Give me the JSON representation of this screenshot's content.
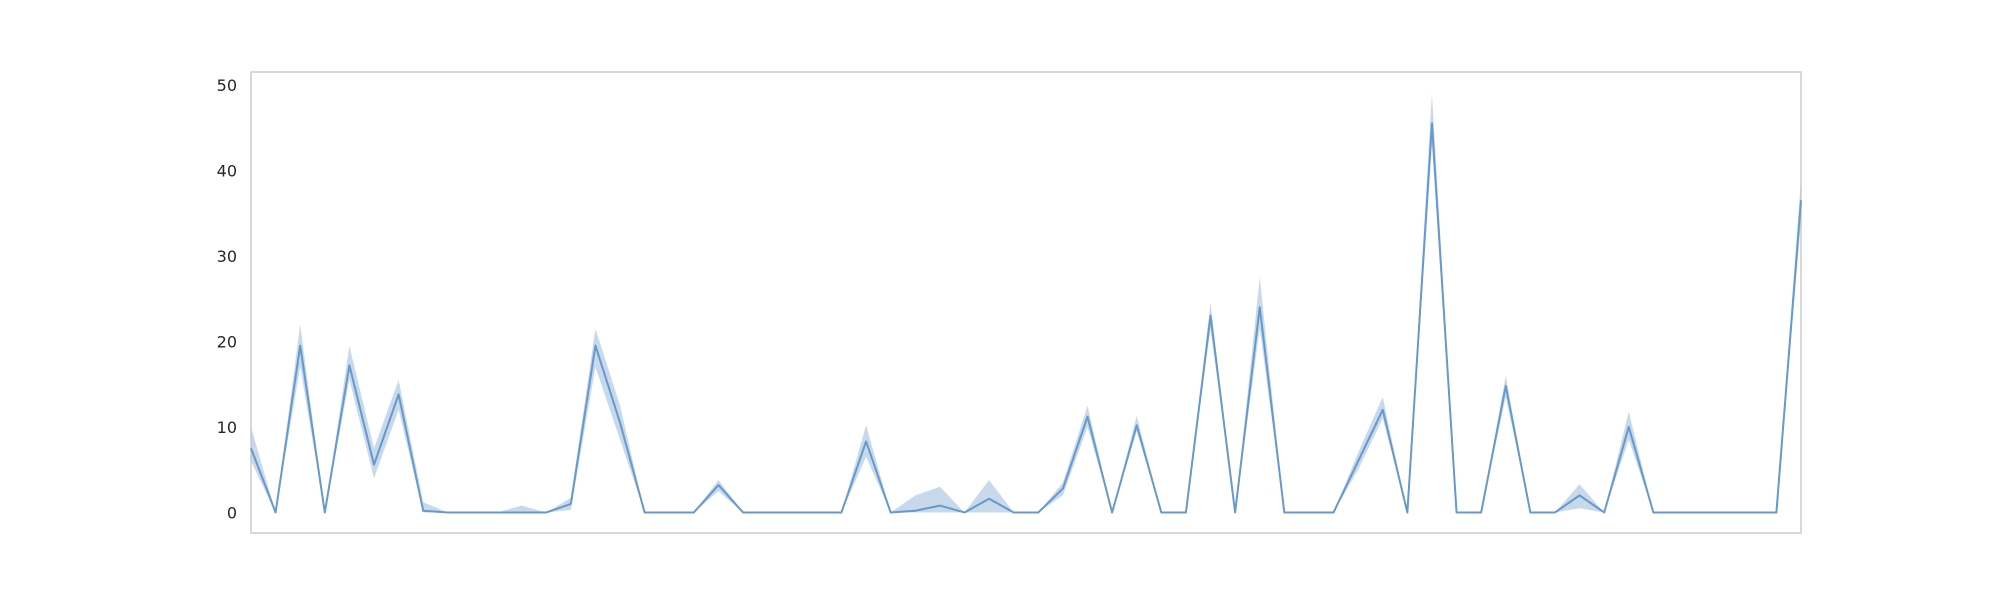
{
  "chart_data": {
    "type": "line",
    "title": "",
    "xlabel": "",
    "ylabel": "",
    "ylim": [
      -2.4,
      51.5
    ],
    "xlim": [
      0,
      63
    ],
    "grid": false,
    "y_ticks": [
      "0",
      "10",
      "20",
      "30",
      "40",
      "50"
    ],
    "colors": {
      "line": "#6699cc",
      "band": "#a9c5e0",
      "frame": "#cccccc"
    },
    "series": [
      {
        "values": [
          7.5,
          0,
          19.5,
          0,
          17.2,
          5.6,
          13.8,
          0.2,
          0,
          0,
          0,
          0,
          0,
          1,
          19.5,
          10.5,
          0,
          0,
          0,
          3.2,
          0,
          0,
          0,
          0,
          0,
          8.3,
          0,
          0.2,
          0.8,
          0,
          1.6,
          0,
          0,
          2.8,
          11.2,
          0,
          10.2,
          0,
          0,
          23,
          0,
          24,
          0,
          0,
          0,
          6,
          12,
          0,
          45.5,
          0,
          0,
          14.8,
          0,
          0,
          2,
          0,
          10,
          0,
          0,
          0,
          0,
          0,
          0,
          36.5
        ],
        "lower": [
          6,
          0,
          17,
          0,
          15.5,
          4,
          12,
          0,
          0,
          0,
          0,
          0,
          0,
          0.3,
          17,
          8.5,
          0,
          0,
          0,
          2.5,
          0,
          0,
          0,
          0,
          0,
          6.5,
          0,
          0,
          0,
          0,
          0,
          0,
          0,
          2,
          10,
          0,
          9.5,
          0,
          0,
          21.5,
          0,
          21.5,
          0,
          0,
          0,
          5,
          11,
          0,
          43,
          0,
          0,
          13.5,
          0,
          0,
          0.5,
          0,
          8.5,
          0,
          0,
          0,
          0,
          0,
          0,
          34
        ],
        "upper": [
          10,
          0,
          22,
          0,
          19.5,
          7.5,
          15.5,
          1.2,
          0,
          0,
          0,
          0.8,
          0,
          1.7,
          21.5,
          12.5,
          0,
          0,
          0,
          3.8,
          0,
          0,
          0,
          0,
          0,
          10.2,
          0,
          2,
          3,
          0,
          3.8,
          0,
          0,
          3.5,
          12.5,
          0,
          11.3,
          0,
          0,
          24.5,
          0,
          27.5,
          0,
          0,
          0,
          7,
          13.5,
          0,
          49,
          0,
          0,
          16,
          0,
          0,
          3.3,
          0,
          11.8,
          0,
          0,
          0,
          0,
          0,
          0,
          39
        ]
      }
    ]
  }
}
